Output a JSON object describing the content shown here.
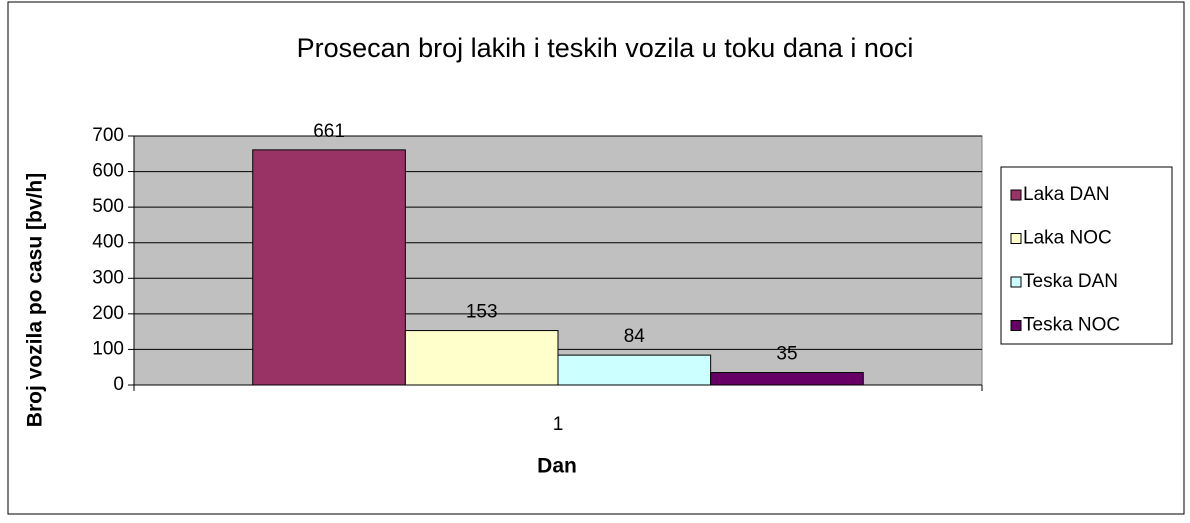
{
  "chart_data": {
    "type": "bar",
    "title": "Prosecan broj lakih i teskih vozila u toku dana i noci",
    "x_label": "Dan",
    "y_label": "Broj vozila po casu [bv/h]",
    "categories": [
      "1"
    ],
    "series": [
      {
        "name": "Laka DAN",
        "color": "#993366",
        "values": [
          661
        ]
      },
      {
        "name": "Laka NOC",
        "color": "#ffffcc",
        "values": [
          153
        ]
      },
      {
        "name": "Teska DAN",
        "color": "#ccffff",
        "values": [
          84
        ]
      },
      {
        "name": "Teska NOC",
        "color": "#660066",
        "values": [
          35
        ]
      }
    ],
    "ylim": [
      0,
      700
    ],
    "yticks": [
      0,
      100,
      200,
      300,
      400,
      500,
      600,
      700
    ],
    "grid": true,
    "plot_background": "#c0c0c0",
    "legend": "right"
  }
}
